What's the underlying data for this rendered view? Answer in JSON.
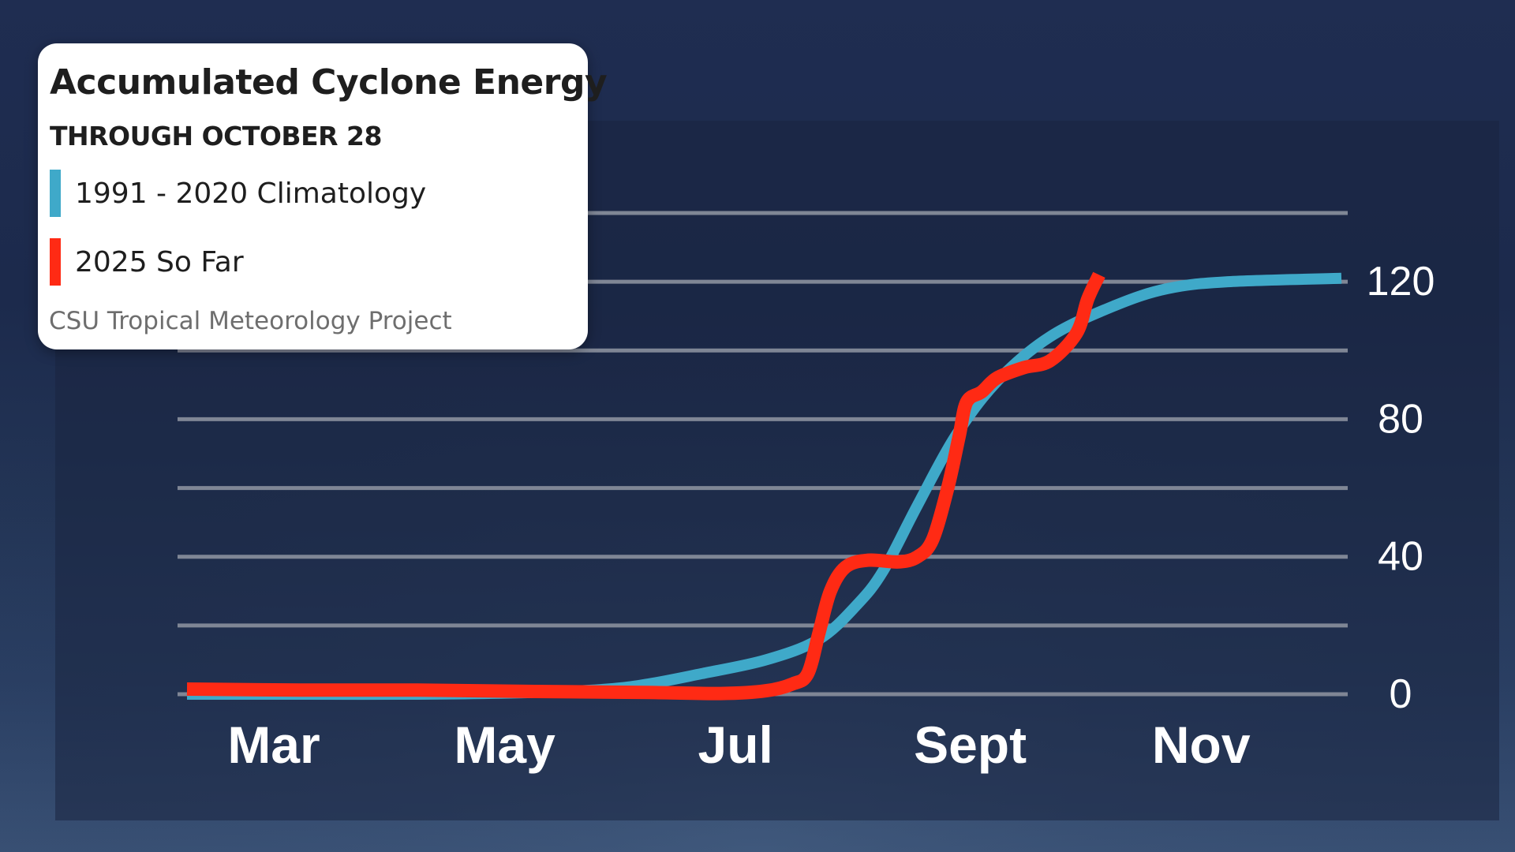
{
  "chart_data": {
    "type": "line",
    "title": "Accumulated Cyclone Energy",
    "subtitle": "THROUGH OCTOBER 28",
    "source": "CSU Tropical Meteorology Project",
    "x_ticks": [
      "Mar",
      "May",
      "Jul",
      "Sept",
      "Nov"
    ],
    "y_ticks": [
      0,
      40,
      80,
      120
    ],
    "ylim": [
      0,
      140
    ],
    "grid": true,
    "legend_position": "top-left",
    "series": [
      {
        "name": "1991 - 2020 Climatology",
        "color": "#3fa9c9",
        "points": [
          [
            "Mar 1",
            0
          ],
          [
            "Apr 1",
            0
          ],
          [
            "May 1",
            0
          ],
          [
            "Jun 1",
            0.5
          ],
          [
            "Jun 20",
            1.5
          ],
          [
            "Jul 1",
            3
          ],
          [
            "Jul 15",
            6
          ],
          [
            "Aug 1",
            10
          ],
          [
            "Aug 15",
            16
          ],
          [
            "Aug 25",
            26
          ],
          [
            "Sep 1",
            36
          ],
          [
            "Sep 10",
            55
          ],
          [
            "Sep 20",
            75
          ],
          [
            "Oct 1",
            91
          ],
          [
            "Oct 15",
            104
          ],
          [
            "Nov 1",
            113
          ],
          [
            "Nov 15",
            118
          ],
          [
            "Dec 1",
            120
          ],
          [
            "Dec 31",
            121
          ]
        ]
      },
      {
        "name": "2025 So Far",
        "color": "#ff2a14",
        "points": [
          [
            "Mar 1",
            1.5
          ],
          [
            "Apr 1",
            1.2
          ],
          [
            "May 1",
            1.2
          ],
          [
            "Jun 1",
            0.8
          ],
          [
            "Jul 1",
            0.5
          ],
          [
            "Jul 20",
            0.2
          ],
          [
            "Aug 1",
            1
          ],
          [
            "Aug 8",
            3
          ],
          [
            "Aug 12",
            6
          ],
          [
            "Aug 15",
            18
          ],
          [
            "Aug 18",
            30
          ],
          [
            "Aug 22",
            37
          ],
          [
            "Aug 28",
            39
          ],
          [
            "Sep 5",
            38.5
          ],
          [
            "Sep 10",
            40
          ],
          [
            "Sep 14",
            45
          ],
          [
            "Sep 18",
            60
          ],
          [
            "Sep 21",
            75
          ],
          [
            "Sep 23",
            85
          ],
          [
            "Sep 27",
            88
          ],
          [
            "Oct 1",
            92
          ],
          [
            "Oct 8",
            95
          ],
          [
            "Oct 15",
            97
          ],
          [
            "Oct 22",
            105
          ],
          [
            "Oct 25",
            115
          ],
          [
            "Oct 28",
            122
          ]
        ]
      }
    ]
  }
}
